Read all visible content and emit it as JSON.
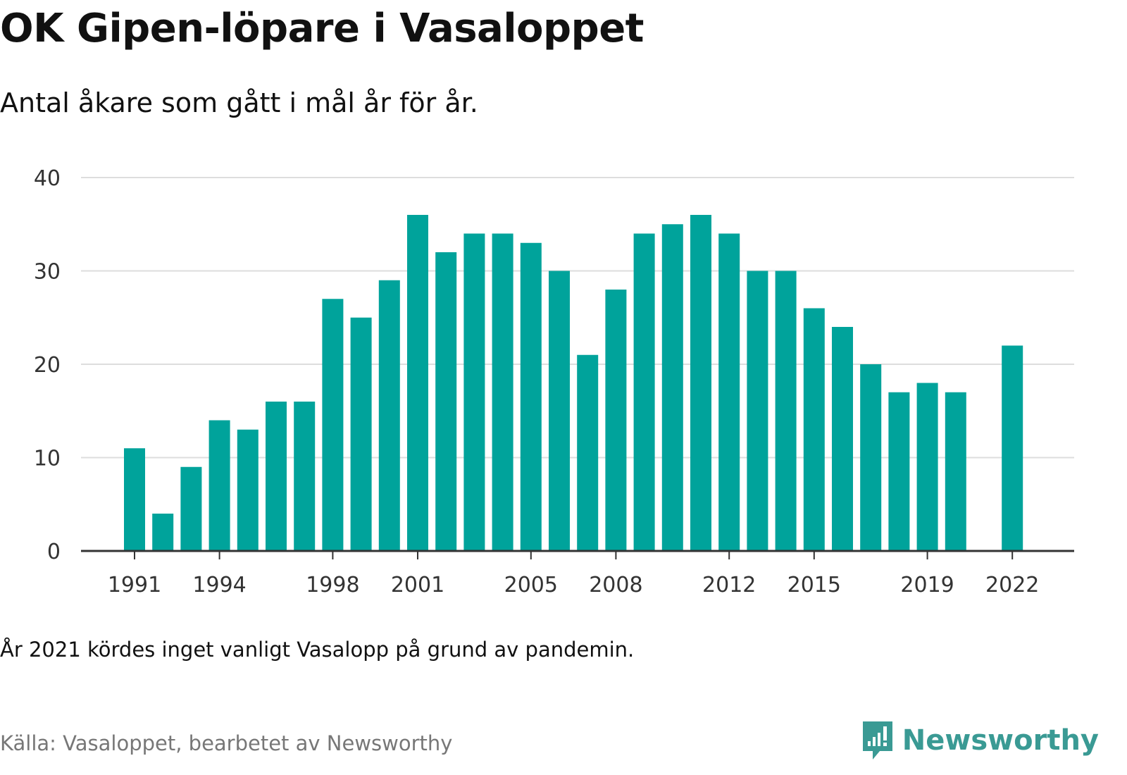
{
  "title": "OK Gipen-löpare i Vasaloppet",
  "subtitle": "Antal åkare som gått i mål år för år.",
  "note": "År 2021 kördes inget vanligt Vasalopp på grund av pandemin.",
  "source": "Källa: Vasaloppet, bearbetet av Newsworthy",
  "brand": {
    "name": "Newsworthy",
    "icon": "newsworthy-logo-icon",
    "color": "#3a9a94"
  },
  "chart_data": {
    "type": "bar",
    "title": "OK Gipen-löpare i Vasaloppet",
    "subtitle": "Antal åkare som gått i mål år för år.",
    "xlabel": "",
    "ylabel": "",
    "ylim": [
      0,
      40
    ],
    "yticks": [
      0,
      10,
      20,
      30,
      40
    ],
    "xticks": [
      1991,
      1994,
      1998,
      2001,
      2005,
      2008,
      2012,
      2015,
      2019,
      2022
    ],
    "grid": true,
    "bar_color": "#00a39b",
    "categories": [
      1991,
      1992,
      1993,
      1994,
      1995,
      1996,
      1997,
      1998,
      1999,
      2000,
      2001,
      2002,
      2003,
      2004,
      2005,
      2006,
      2007,
      2008,
      2009,
      2010,
      2011,
      2012,
      2013,
      2014,
      2015,
      2016,
      2017,
      2018,
      2019,
      2020,
      2021,
      2022
    ],
    "values": [
      11,
      4,
      9,
      14,
      13,
      16,
      16,
      27,
      25,
      29,
      36,
      32,
      34,
      34,
      33,
      30,
      21,
      28,
      34,
      35,
      36,
      34,
      30,
      30,
      26,
      24,
      20,
      17,
      18,
      17,
      null,
      22
    ]
  }
}
